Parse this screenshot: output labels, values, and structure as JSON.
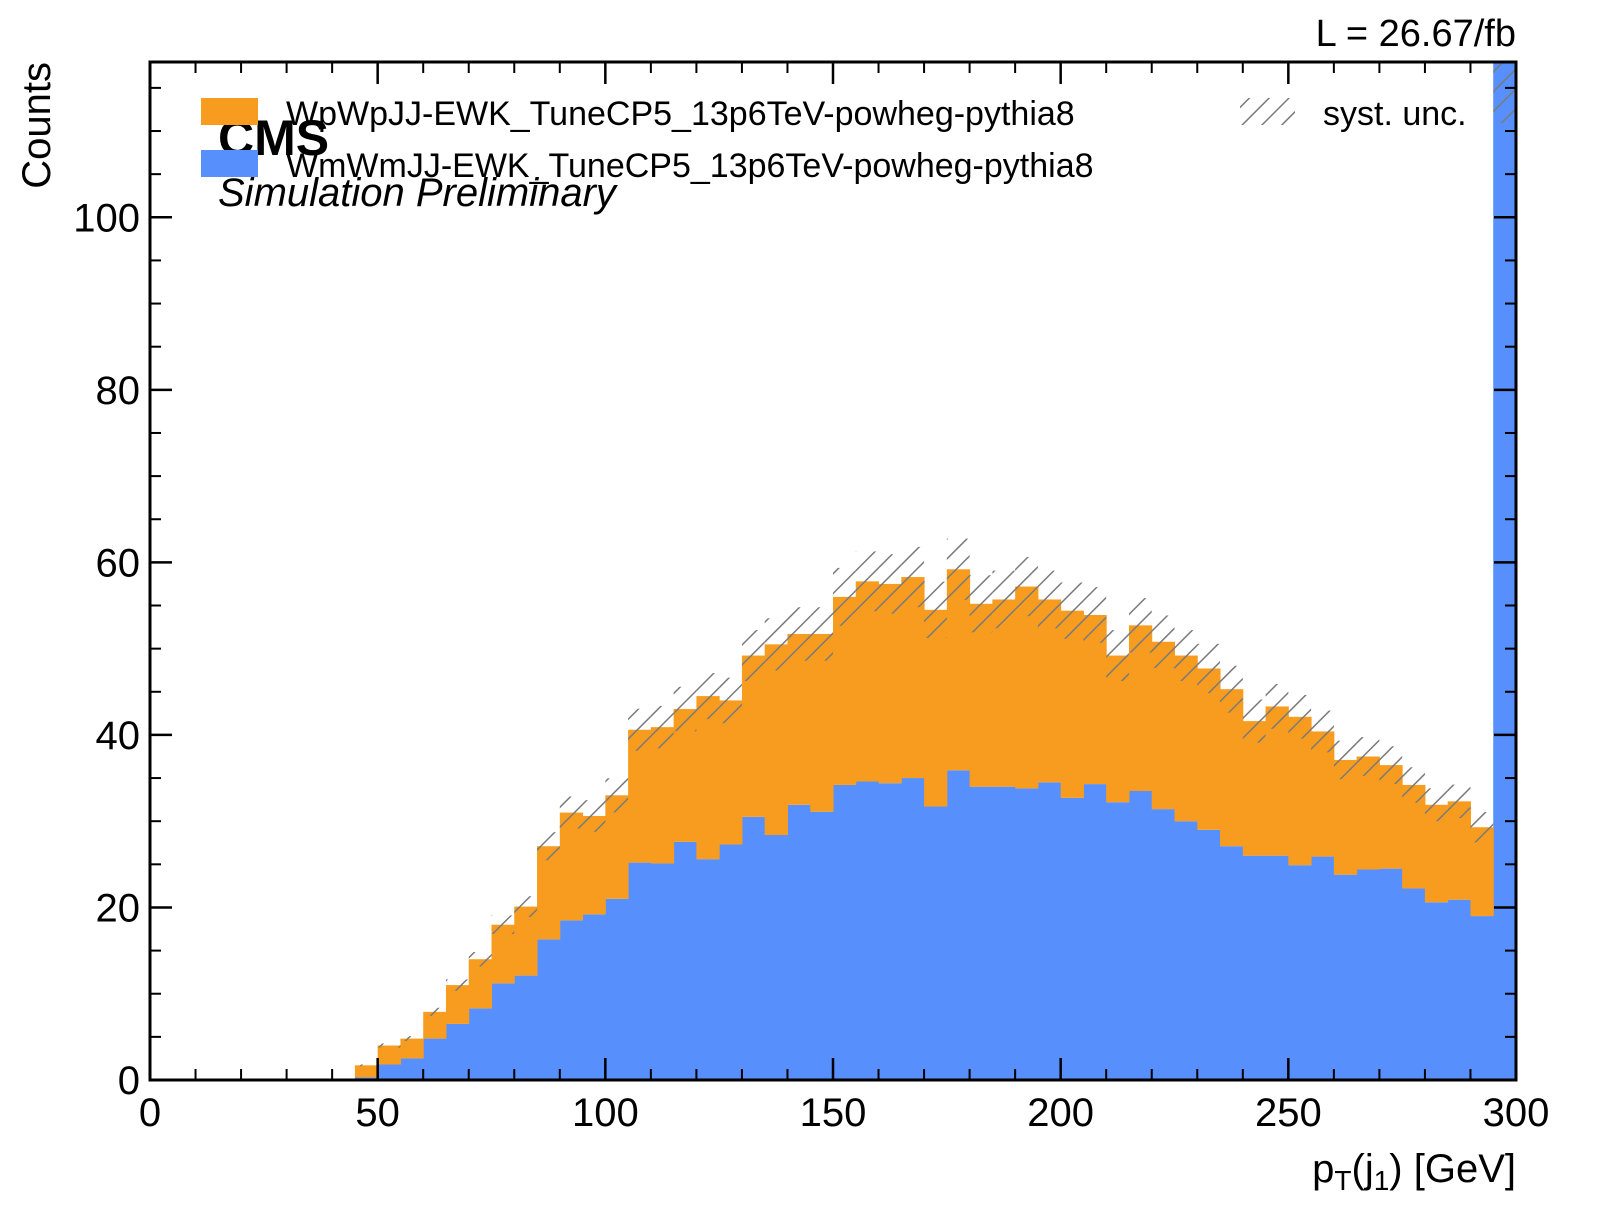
{
  "chart_data": {
    "type": "bar",
    "stacked": true,
    "histogram": true,
    "bin_width": 5,
    "x": [
      45,
      50,
      55,
      60,
      65,
      70,
      75,
      80,
      85,
      90,
      95,
      100,
      105,
      110,
      115,
      120,
      125,
      130,
      135,
      140,
      145,
      150,
      155,
      160,
      165,
      170,
      175,
      180,
      185,
      190,
      195,
      200,
      205,
      210,
      215,
      220,
      225,
      230,
      235,
      240,
      245,
      250,
      255,
      260,
      265,
      270,
      275,
      280,
      285,
      290,
      295
    ],
    "series": [
      {
        "name": "WmWmJJ-EWK_TuneCP5_13p6TeV-powheg-pythia8",
        "color": "#5790fc",
        "values": [
          0.3,
          1.8,
          2.5,
          4.8,
          6.5,
          8.3,
          11.2,
          12.1,
          16.3,
          18.5,
          19.2,
          21.0,
          25.2,
          25.1,
          27.6,
          25.6,
          27.3,
          30.5,
          28.4,
          31.9,
          31.1,
          34.2,
          34.6,
          34.4,
          35.0,
          31.7,
          35.9,
          34.0,
          34.0,
          33.8,
          34.5,
          32.7,
          34.3,
          32.2,
          33.5,
          31.4,
          30.0,
          29.0,
          27.1,
          26.0,
          26.0,
          24.9,
          25.9,
          23.8,
          24.4,
          24.5,
          22.2,
          20.6,
          20.9,
          19.0,
          118.0
        ]
      },
      {
        "name": "WpWpJJ-EWK_TuneCP5_13p6TeV-powheg-pythia8",
        "color": "#f89c20",
        "values": [
          1.4,
          2.2,
          2.3,
          3.1,
          4.5,
          5.7,
          6.8,
          8.0,
          10.8,
          12.5,
          11.4,
          12.0,
          15.4,
          15.8,
          15.4,
          18.9,
          16.7,
          18.7,
          22.1,
          19.8,
          20.6,
          21.8,
          23.2,
          23.1,
          23.3,
          22.8,
          23.3,
          21.2,
          21.7,
          23.4,
          21.2,
          21.7,
          19.6,
          17.0,
          19.2,
          19.4,
          19.2,
          18.7,
          18.2,
          15.6,
          17.3,
          17.2,
          14.5,
          13.3,
          13.1,
          12.0,
          12.0,
          11.3,
          11.4,
          10.3,
          0
        ]
      }
    ],
    "uncertainty": {
      "name": "syst. unc.",
      "relative": 0.06
    },
    "xlabel": "p_T(j_1) [GeV]",
    "ylabel": "Counts",
    "xlim": [
      0,
      300
    ],
    "ylim": [
      0,
      118
    ],
    "xticks": [
      0,
      50,
      100,
      150,
      200,
      250,
      300
    ],
    "yticks": [
      0,
      20,
      40,
      60,
      80,
      100
    ],
    "legend_position": "top",
    "grid": false
  },
  "labels": {
    "cms": "CMS",
    "cms_sub": "Simulation Preliminary",
    "lumi": "L = 26.67/fb",
    "xlabel_base": "p",
    "xlabel_sub": "T",
    "xlabel_mid": "(j",
    "xlabel_sub2": "1",
    "xlabel_tail": ") [GeV]",
    "ylabel": "Counts",
    "legend_unc": "syst. unc."
  }
}
